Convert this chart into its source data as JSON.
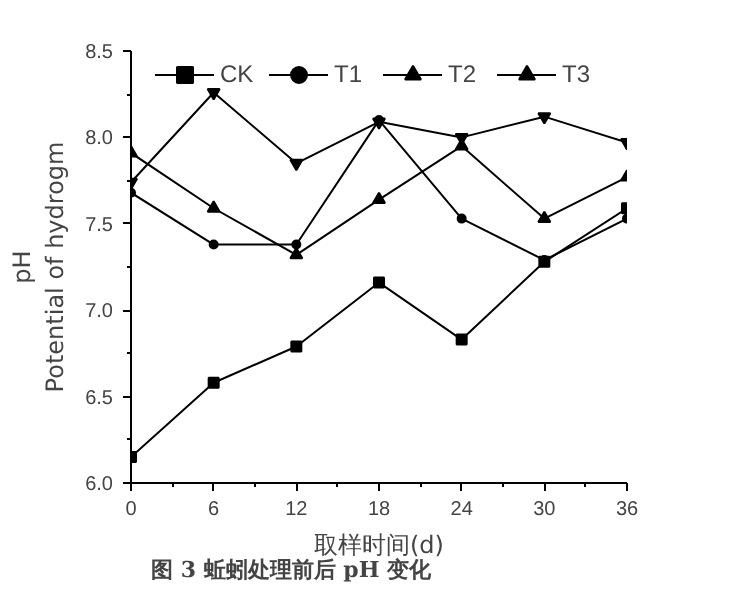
{
  "chart_data": {
    "type": "line",
    "xlabel": "取样时间(d)",
    "ylabel": "pH\nPotential of hydrogm",
    "x": [
      0,
      6,
      12,
      18,
      24,
      30,
      36
    ],
    "series": [
      {
        "name": "CK",
        "color": "#000000",
        "marker": "square",
        "values": [
          6.15,
          6.58,
          6.79,
          7.16,
          6.83,
          7.28,
          7.59
        ]
      },
      {
        "name": "T1",
        "color": "#000000",
        "marker": "circle",
        "values": [
          7.68,
          7.38,
          7.38,
          8.1,
          7.53,
          7.29,
          7.53
        ]
      },
      {
        "name": "T2",
        "color": "#000000",
        "marker": "triangle",
        "values": [
          7.91,
          7.59,
          7.32,
          7.64,
          7.95,
          7.53,
          7.77
        ]
      },
      {
        "name": "T3",
        "color": "#000000",
        "marker": "triangle",
        "values": [
          7.74,
          8.26,
          7.85,
          8.09,
          8.0,
          8.12,
          7.97
        ]
      }
    ],
    "xlim": [
      0,
      36
    ],
    "xticks": [
      0,
      6,
      12,
      18,
      24,
      30,
      36
    ],
    "ylim": [
      6.0,
      8.5
    ],
    "yticks": [
      {
        "value": 6.0,
        "label": "6.0"
      },
      {
        "value": 6.5,
        "label": "6.5"
      },
      {
        "value": 7.0,
        "label": "7.0"
      },
      {
        "value": 7.5,
        "label": "7.5"
      },
      {
        "value": 8.0,
        "label": "8.0"
      },
      {
        "value": 8.5,
        "label": "8.5"
      }
    ],
    "legend": "top",
    "grid": false,
    "line_style": "solid",
    "annotations": [
      "图 3  蚯蚓处理前后 pH 变化"
    ]
  }
}
